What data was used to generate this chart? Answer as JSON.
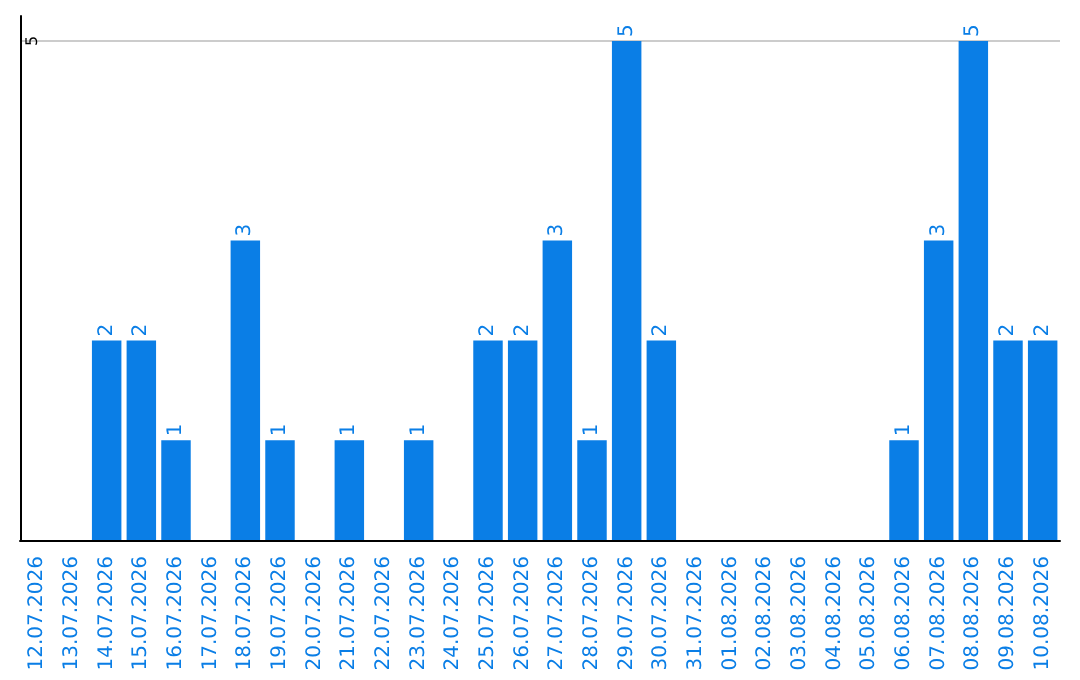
{
  "chart_data": {
    "type": "bar",
    "categories": [
      "12.07.2026",
      "13.07.2026",
      "14.07.2026",
      "15.07.2026",
      "16.07.2026",
      "17.07.2026",
      "18.07.2026",
      "19.07.2026",
      "20.07.2026",
      "21.07.2026",
      "22.07.2026",
      "23.07.2026",
      "24.07.2026",
      "25.07.2026",
      "26.07.2026",
      "27.07.2026",
      "28.07.2026",
      "29.07.2026",
      "30.07.2026",
      "31.07.2026",
      "01.08.2026",
      "02.08.2026",
      "03.08.2026",
      "04.08.2026",
      "05.08.2026",
      "06.08.2026",
      "07.08.2026",
      "08.08.2026",
      "09.08.2026",
      "10.08.2026"
    ],
    "values": [
      0,
      0,
      2,
      2,
      1,
      0,
      3,
      1,
      0,
      1,
      0,
      1,
      0,
      2,
      2,
      3,
      1,
      5,
      2,
      0,
      0,
      0,
      0,
      0,
      0,
      1,
      3,
      5,
      2,
      2
    ],
    "value_labels": [
      null,
      null,
      "2",
      "2",
      "1",
      null,
      "3",
      "1",
      null,
      "1",
      null,
      "1",
      null,
      "2",
      "2",
      "3",
      "1",
      "5",
      "2",
      null,
      null,
      null,
      null,
      null,
      null,
      "1",
      "3",
      "5",
      "2",
      "2"
    ],
    "color": "#0a7ee6",
    "ylim": [
      0,
      5.25
    ],
    "yticks": [
      {
        "value": 0,
        "label": null
      },
      5
    ],
    "grid": "y"
  }
}
